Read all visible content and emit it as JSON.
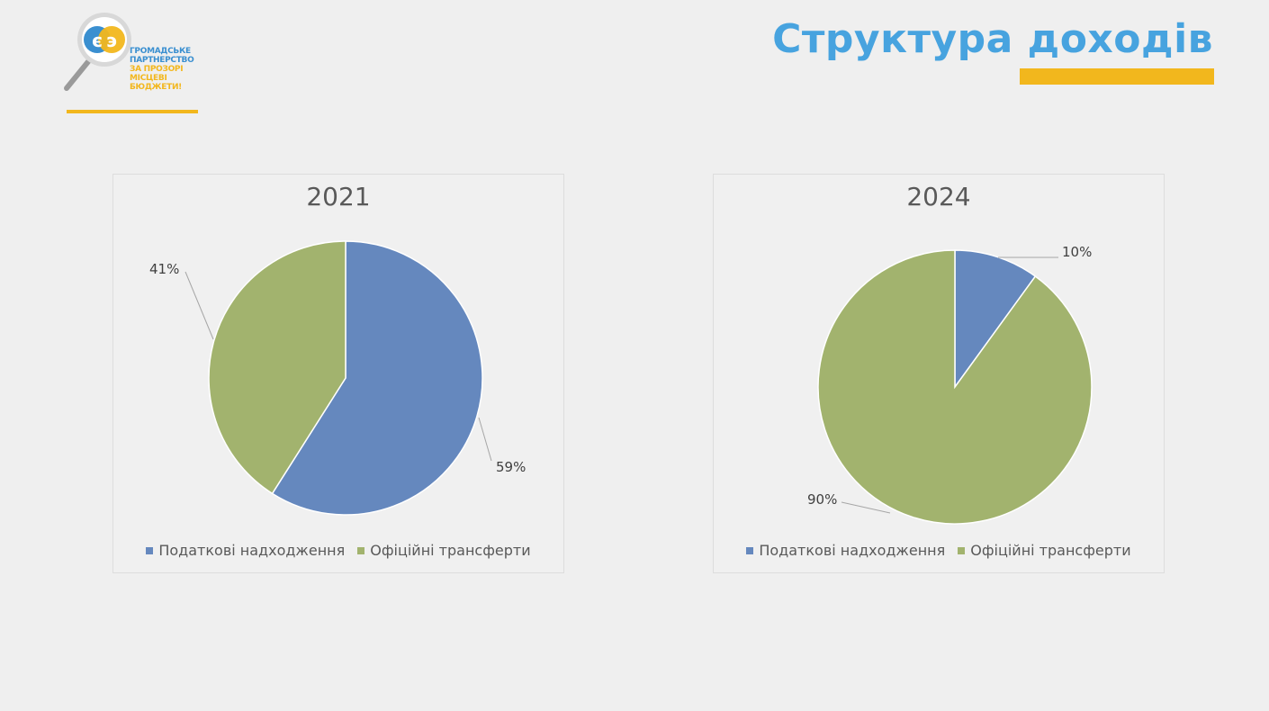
{
  "logo": {
    "line1": "ГРОМАДСЬКЕ",
    "line2": "ПАРТНЕРСТВО",
    "line3": "ЗА ПРОЗОРІ",
    "line4": "МІСЦЕВІ БЮДЖЕТИ!"
  },
  "slide": {
    "title": "Структура доходів"
  },
  "colors": {
    "blue": "#6588be",
    "green": "#a2b36e",
    "accent": "#f2b71d",
    "title": "#47a3df"
  },
  "chart_data": [
    {
      "type": "pie",
      "title": "2021",
      "categories": [
        "Податкові надходження",
        "Офіційні трансферти"
      ],
      "values": [
        59,
        41
      ],
      "labels": [
        "59%",
        "41%"
      ],
      "legend_position": "bottom"
    },
    {
      "type": "pie",
      "title": "2024",
      "categories": [
        "Податкові надходження",
        "Офіційні трансферти"
      ],
      "values": [
        10,
        90
      ],
      "labels": [
        "10%",
        "90%"
      ],
      "legend_position": "bottom"
    }
  ]
}
